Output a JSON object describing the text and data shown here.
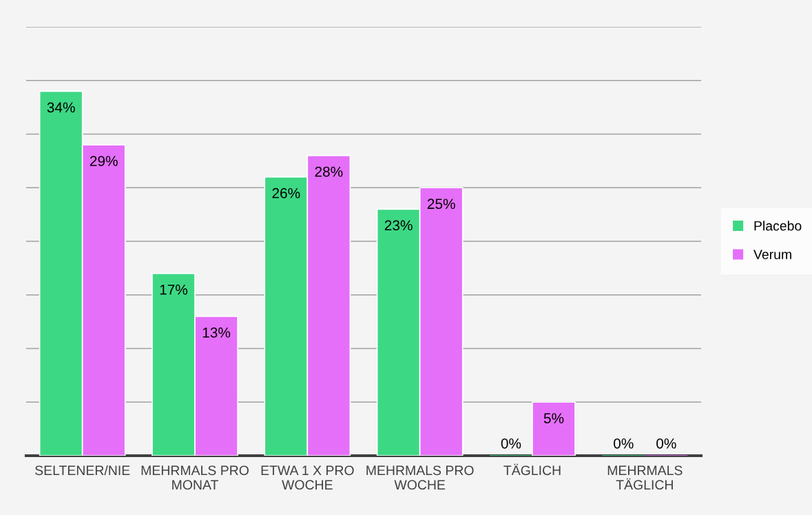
{
  "chart_data": {
    "type": "bar",
    "categories": [
      "SELTENER/NIE",
      "MEHRMALS PRO MONAT",
      "ETWA 1 X PRO WOCHE",
      "MEHRMALS PRO WOCHE",
      "TÄGLICH",
      "MEHRMALS TÄGLICH"
    ],
    "series": [
      {
        "name": "Placebo",
        "color": "#3dd884",
        "values": [
          34,
          17,
          26,
          23,
          0,
          0
        ],
        "value_labels": [
          "34%",
          "17%",
          "26%",
          "23%",
          "0%",
          "0%"
        ]
      },
      {
        "name": "Verum",
        "color": "#e56ff9",
        "values": [
          29,
          13,
          28,
          25,
          5,
          0
        ],
        "value_labels": [
          "29%",
          "13%",
          "28%",
          "25%",
          "5%",
          "0%"
        ]
      }
    ],
    "ylim": [
      0,
      40
    ],
    "yticks": [
      {
        "value": 0,
        "label": null
      },
      {
        "value": 5,
        "label": null
      },
      {
        "value": 10,
        "label": null
      },
      {
        "value": 15,
        "label": null
      },
      {
        "value": 20,
        "label": null
      },
      {
        "value": 25,
        "label": null
      },
      {
        "value": 30,
        "label": null
      },
      {
        "value": 35,
        "label": null
      },
      {
        "value": 40,
        "label": null
      }
    ],
    "grid": "y",
    "legend": "right",
    "tick_labels": "x"
  }
}
